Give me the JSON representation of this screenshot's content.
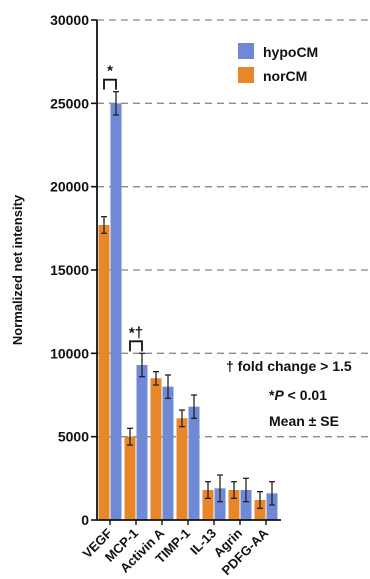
{
  "chart_data": {
    "type": "bar",
    "ylabel": "Normalized net intensity",
    "xlabel": "",
    "ylim": [
      0,
      30000
    ],
    "yticks": [
      0,
      5000,
      10000,
      15000,
      20000,
      25000,
      30000
    ],
    "grid": "dashed horizontal",
    "legend_position": "top-right",
    "categories": [
      "VEGF",
      "MCP-1",
      "Activin A",
      "TIMP-1",
      "IL-13",
      "Agrin",
      "PDFG-AA"
    ],
    "series": [
      {
        "name": "norCM",
        "color": "#E8872A",
        "values": [
          17700,
          5000,
          8500,
          6100,
          1800,
          1800,
          1200
        ],
        "errors": [
          500,
          500,
          400,
          500,
          500,
          500,
          500
        ]
      },
      {
        "name": "hypoCM",
        "color": "#6F89D6",
        "values": [
          25000,
          9300,
          8000,
          6800,
          1900,
          1800,
          1600
        ],
        "errors": [
          700,
          700,
          700,
          700,
          800,
          700,
          700
        ]
      }
    ],
    "significance": [
      {
        "category": "VEGF",
        "label": "*"
      },
      {
        "category": "MCP-1",
        "label": "*†"
      }
    ],
    "notes": {
      "fold": "† fold change > 1.5",
      "p_star": "*",
      "p_letter": "P",
      "p_rest": " < 0.01",
      "mean": "Mean ± SE"
    }
  }
}
